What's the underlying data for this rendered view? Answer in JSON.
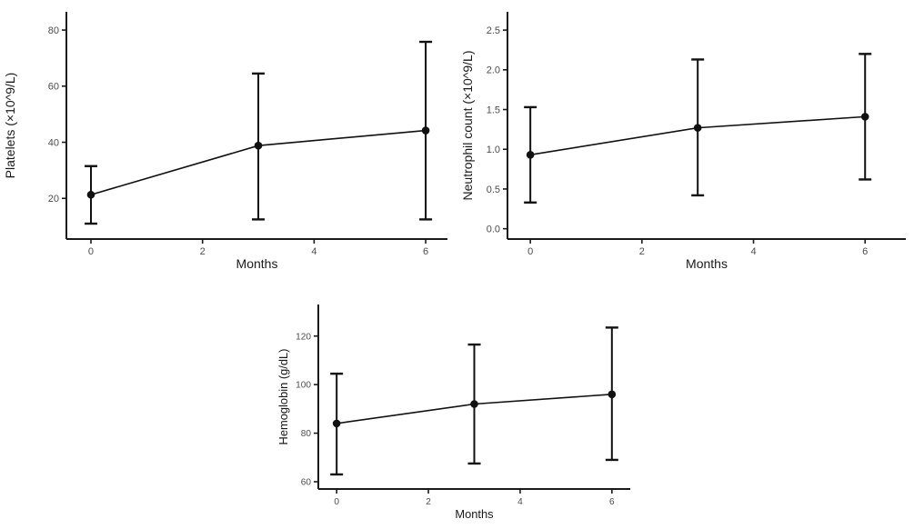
{
  "figure": {
    "background": "#ffffff",
    "axis_color": "#1a1a1a",
    "tick_label_color": "#4d4d4d",
    "title_color": "#1a1a1a",
    "data_color": "#111111"
  },
  "chart_data": [
    {
      "id": "platelets",
      "type": "line",
      "title": "",
      "xlabel": "Months",
      "ylabel": "Platelets (×10^9/L)",
      "x": [
        0,
        3,
        6
      ],
      "series": [
        {
          "name": "mean with error bars",
          "values": [
            21.3,
            38.8,
            44.2
          ],
          "err_low": [
            11,
            12.5,
            12.5
          ],
          "err_high": [
            31.5,
            64.5,
            75.8
          ]
        }
      ],
      "xticks": {
        "values": [
          0,
          2,
          4,
          6
        ],
        "labels": [
          "0",
          "2",
          "4",
          "6"
        ]
      },
      "yticks": {
        "values": [
          20,
          40,
          60,
          80
        ],
        "labels": [
          "20",
          "40",
          "60",
          "80"
        ]
      },
      "xlim": [
        -0.44,
        6.39
      ],
      "ylim": [
        5.5,
        86.5
      ],
      "grid": false,
      "legend": "none"
    },
    {
      "id": "neutrophil-count",
      "type": "line",
      "title": "",
      "xlabel": "Months",
      "ylabel": "Neutrophil count (×10^9/L)",
      "x": [
        0,
        3,
        6
      ],
      "series": [
        {
          "name": "mean with error bars",
          "values": [
            0.93,
            1.27,
            1.41
          ],
          "err_low": [
            0.33,
            0.42,
            0.62
          ],
          "err_high": [
            1.53,
            2.13,
            2.2
          ]
        }
      ],
      "xticks": {
        "values": [
          0,
          2,
          4,
          6
        ],
        "labels": [
          "0",
          "2",
          "4",
          "6"
        ]
      },
      "yticks": {
        "values": [
          0.0,
          0.5,
          1.0,
          1.5,
          2.0,
          2.5
        ],
        "labels": [
          "0.0",
          "0.5",
          "1.0",
          "1.5",
          "2.0",
          "2.5"
        ]
      },
      "xlim": [
        -0.41,
        6.73
      ],
      "ylim": [
        -0.13,
        2.73
      ],
      "grid": false,
      "legend": "none"
    },
    {
      "id": "hemoglobin",
      "type": "line",
      "title": "",
      "xlabel": "Months",
      "ylabel": "Hemoglobin (g/dL)",
      "x": [
        0,
        3,
        6
      ],
      "series": [
        {
          "name": "mean with error bars",
          "values": [
            84,
            92,
            96
          ],
          "err_low": [
            63,
            67.5,
            69
          ],
          "err_high": [
            104.5,
            116.5,
            123.5
          ]
        }
      ],
      "xticks": {
        "values": [
          0,
          2,
          4,
          6
        ],
        "labels": [
          "0",
          "2",
          "4",
          "6"
        ]
      },
      "yticks": {
        "values": [
          60,
          80,
          100,
          120
        ],
        "labels": [
          "60",
          "80",
          "100",
          "120"
        ]
      },
      "xlim": [
        -0.4,
        6.4
      ],
      "ylim": [
        57,
        133
      ],
      "grid": false,
      "legend": "none"
    }
  ]
}
